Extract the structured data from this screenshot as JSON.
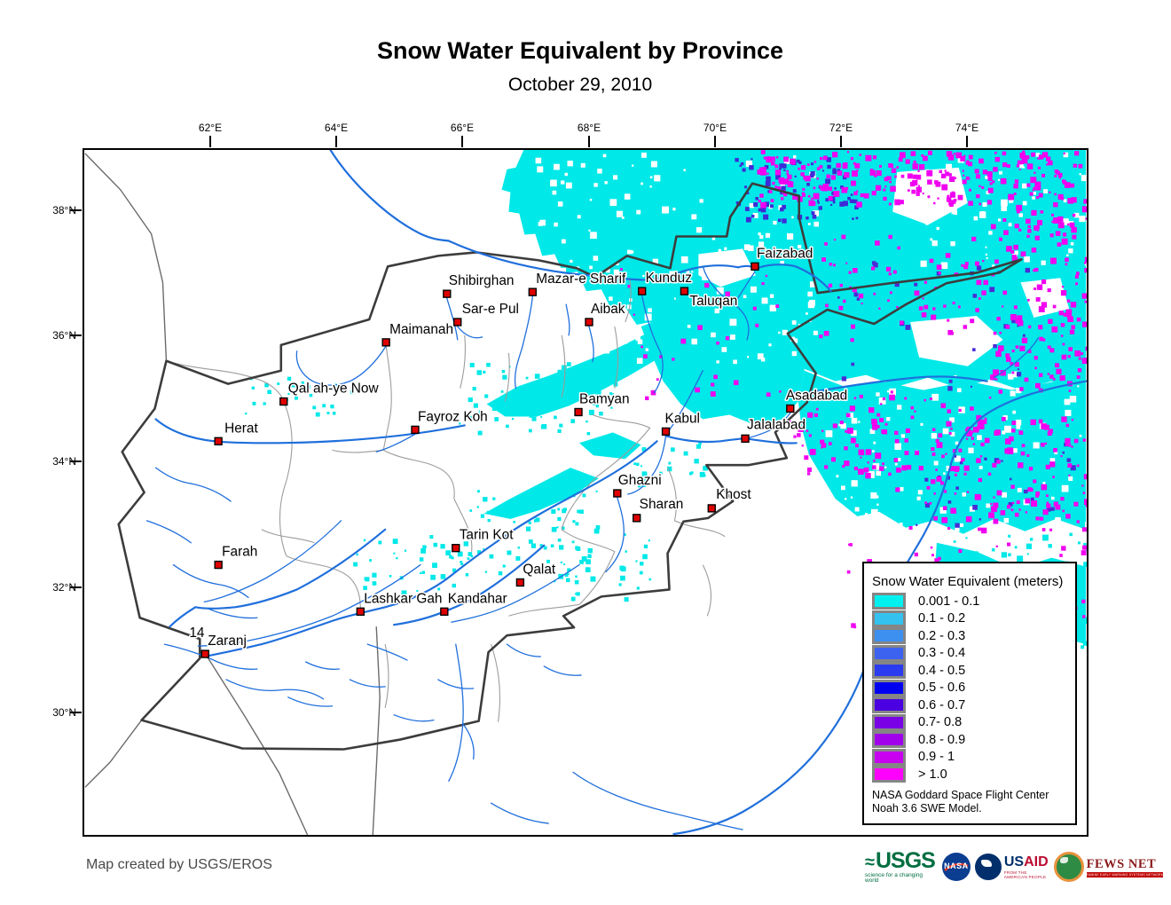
{
  "title": "Snow Water Equivalent by Province",
  "subtitle": "October 29, 2010",
  "credit": "Map created by USGS/EROS",
  "axes": {
    "lon_ticks": [
      "62°E",
      "64°E",
      "66°E",
      "68°E",
      "70°E",
      "72°E",
      "74°E"
    ],
    "lat_ticks": [
      "38°N",
      "36°N",
      "34°N",
      "32°N",
      "30°N"
    ]
  },
  "map": {
    "stray_label": "14",
    "colors": {
      "snow_light": "#00E8E8",
      "snow_extreme": "#F000F0",
      "river": "#1F6FDC",
      "country_border": "#3C3C3C",
      "province_border": "#9C9C9C",
      "city_marker": "#E00000"
    },
    "cities": [
      {
        "name": "Faizabad"
      },
      {
        "name": "Kunduz"
      },
      {
        "name": "Taluqan"
      },
      {
        "name": "Mazar-e Sharif"
      },
      {
        "name": "Shibirghan"
      },
      {
        "name": "Sar-e Pul"
      },
      {
        "name": "Aibak"
      },
      {
        "name": "Maimanah"
      },
      {
        "name": "Qal ah-ye Now"
      },
      {
        "name": "Fayroz Koh"
      },
      {
        "name": "Herat"
      },
      {
        "name": "Bamyan"
      },
      {
        "name": "Kabul"
      },
      {
        "name": "Asadabad"
      },
      {
        "name": "Jalalabad"
      },
      {
        "name": "Ghazni"
      },
      {
        "name": "Sharan"
      },
      {
        "name": "Khost"
      },
      {
        "name": "Tarin Kot"
      },
      {
        "name": "Qalat"
      },
      {
        "name": "Farah"
      },
      {
        "name": "Lashkar Gah"
      },
      {
        "name": "Kandahar"
      },
      {
        "name": "Zaranj"
      }
    ]
  },
  "legend": {
    "title": "Snow Water Equivalent (meters)",
    "items": [
      {
        "label": "0.001 - 0.1",
        "color": "#00F0F0"
      },
      {
        "label": "0.1 - 0.2",
        "color": "#33C2F0"
      },
      {
        "label": "0.2 - 0.3",
        "color": "#3D8FF0"
      },
      {
        "label": "0.3 - 0.4",
        "color": "#3D62F0"
      },
      {
        "label": "0.4 - 0.5",
        "color": "#2B3BF0"
      },
      {
        "label": "0.5 - 0.6",
        "color": "#0000F0"
      },
      {
        "label": "0.6 - 0.7",
        "color": "#4A00E0"
      },
      {
        "label": "0.7- 0.8",
        "color": "#7A00E6"
      },
      {
        "label": "0.8 - 0.9",
        "color": "#A000EB"
      },
      {
        "label": "0.9 - 1",
        "color": "#C800F0"
      },
      {
        "label": "> 1.0",
        "color": "#FF00FF"
      }
    ],
    "note_line1": "NASA Goddard Space Flight Center",
    "note_line2": "Noah 3.6 SWE Model."
  },
  "logos": {
    "usgs": {
      "text": "USGS",
      "tagline": "science for a changing world"
    },
    "nasa": {
      "text": "NASA"
    },
    "usaid": {
      "text_us": "US",
      "text_aid": "AID",
      "tagline": "FROM THE AMERICAN PEOPLE"
    },
    "fewsnet": {
      "text": "FEWS NET",
      "tagline": "FAMINE EARLY WARNING SYSTEMS NETWORK"
    }
  }
}
